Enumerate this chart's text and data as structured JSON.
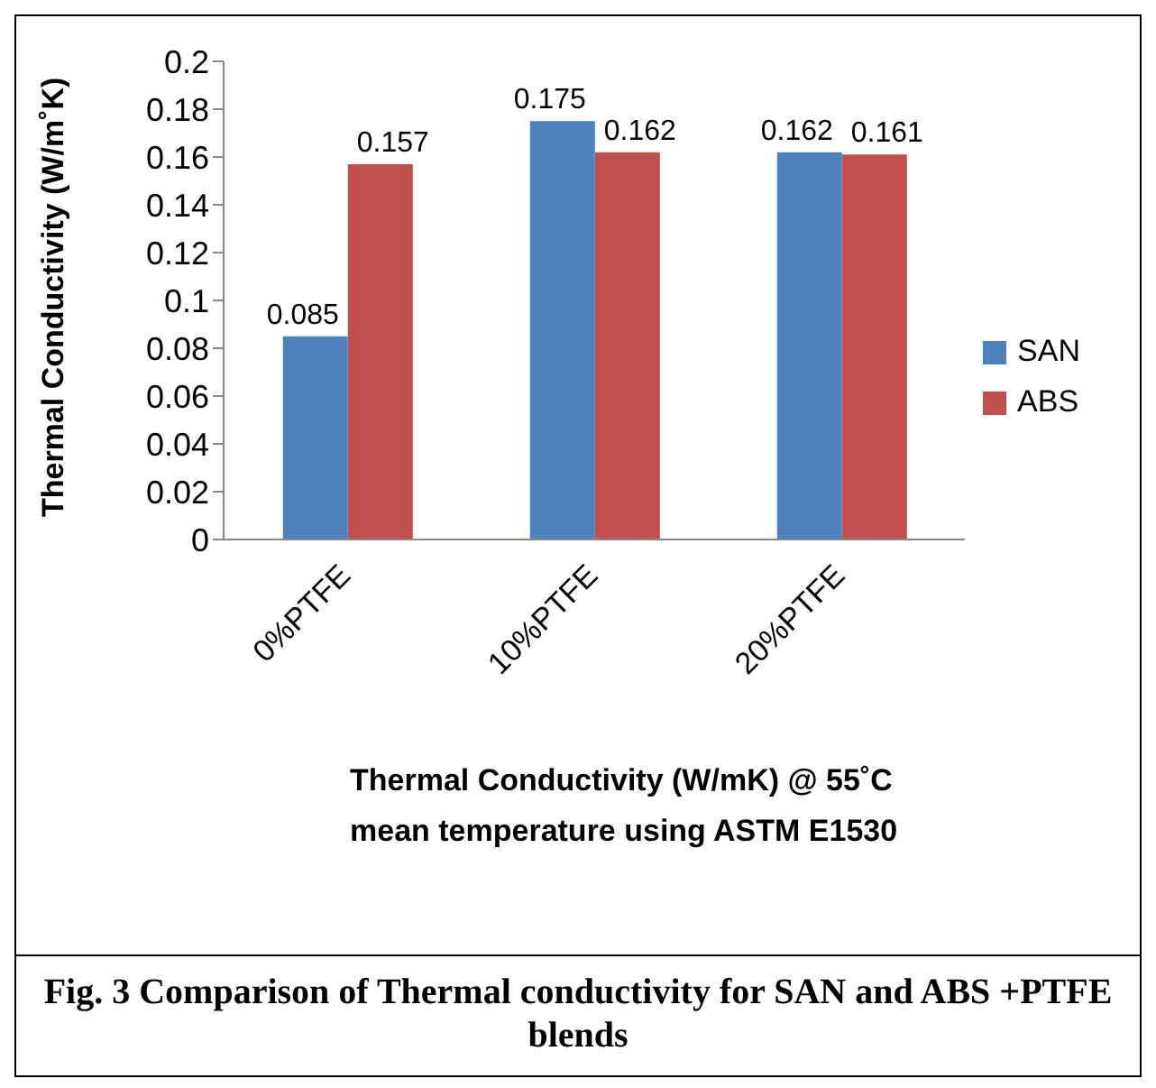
{
  "chart_data": {
    "type": "bar",
    "categories": [
      "0%PTFE",
      "10%PTFE",
      "20%PTFE"
    ],
    "series": [
      {
        "name": "SAN",
        "color": "#4f81bd",
        "values": [
          0.085,
          0.175,
          0.162
        ]
      },
      {
        "name": "ABS",
        "color": "#c0504d",
        "values": [
          0.157,
          0.162,
          0.161
        ]
      }
    ],
    "ylabel": "Thermal Conductivity (W/m˚K)",
    "xlabel": "Thermal Conductivity (W/mK) @ 55˚C mean temperature using ASTM E1530",
    "ylim": [
      0,
      0.2
    ],
    "yticks": [
      0,
      0.02,
      0.04,
      0.06,
      0.08,
      0.1,
      0.12,
      0.14,
      0.16,
      0.18,
      0.2
    ],
    "data_labels": true,
    "legend": "right",
    "grid": false,
    "annotations": [
      "Fig. 3 Comparison of Thermal conductivity for SAN and ABS +PTFE blends"
    ]
  }
}
